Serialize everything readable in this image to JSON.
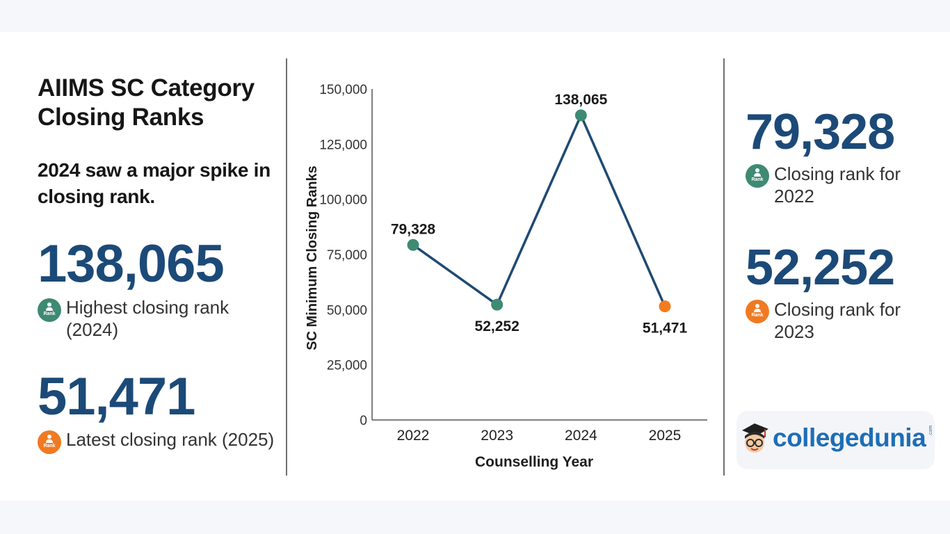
{
  "left": {
    "title": "AIIMS SC Category Closing Ranks",
    "subtitle": "2024 saw a major spike in closing rank.",
    "stats": [
      {
        "value": "138,065",
        "label": "Highest closing rank (2024)",
        "badge": "Rank",
        "badge_color": "#3e8a72",
        "icon": "person-icon"
      },
      {
        "value": "51,471",
        "label": "Latest closing rank (2025)",
        "badge": "Rank",
        "badge_color": "#ef7a22",
        "icon": "person-icon"
      }
    ]
  },
  "right": {
    "stats": [
      {
        "value": "79,328",
        "label": "Closing rank for 2022",
        "badge": "Rank",
        "badge_color": "#3e8a72",
        "icon": "person-icon"
      },
      {
        "value": "52,252",
        "label": "Closing rank for 2023",
        "badge": "Rank",
        "badge_color": "#ef7a22",
        "icon": "person-icon"
      }
    ]
  },
  "logo": {
    "name": "collegedunia",
    "suffix": ".com",
    "icon": "student-mascot-icon"
  },
  "chart_data": {
    "type": "line",
    "categories": [
      "2022",
      "2023",
      "2024",
      "2025"
    ],
    "series": [
      {
        "values": [
          79328,
          52252,
          138065,
          51471
        ]
      }
    ],
    "data_labels": [
      "79,328",
      "52,252",
      "138,065",
      "51,471"
    ],
    "point_colors": [
      "#3e8a72",
      "#3e8a72",
      "#3e8a72",
      "#f47c20"
    ],
    "line_color": "#1f4a73",
    "xlabel": "Counselling Year",
    "ylabel": "SC Minimum Closing Ranks",
    "ylim": [
      0,
      150000
    ],
    "yticks": [
      "0",
      "25,000",
      "50,000",
      "75,000",
      "100,000",
      "125,000",
      "150,000"
    ],
    "grid": false
  }
}
